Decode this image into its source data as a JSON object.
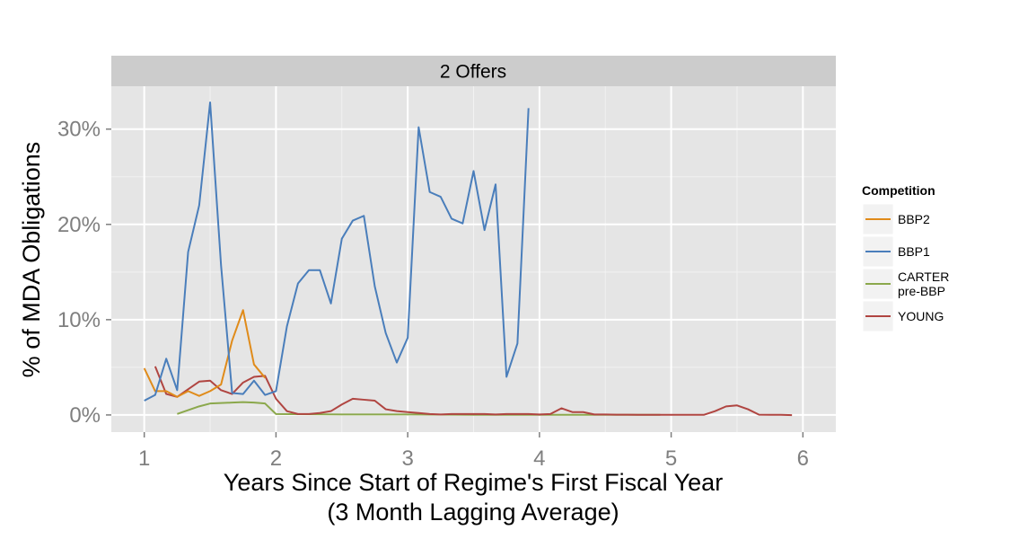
{
  "chart_data": {
    "type": "line",
    "facet_label": "2 Offers",
    "xlabel": "Years Since Start of Regime's First Fiscal Year",
    "xlabel_line2": "(3 Month Lagging Average)",
    "ylabel": "% of MDA Obligations",
    "xlim": [
      0.75,
      6.25
    ],
    "ylim": [
      -0.018,
      0.345
    ],
    "x_ticks": [
      1,
      2,
      3,
      4,
      5,
      6
    ],
    "x_tick_labels": [
      "1",
      "2",
      "3",
      "4",
      "5",
      "6"
    ],
    "y_ticks": [
      0,
      0.1,
      0.2,
      0.3
    ],
    "y_tick_labels": [
      "0%",
      "10%",
      "20%",
      "30%"
    ],
    "grid": true,
    "legend": {
      "title": "Competition",
      "position": "right",
      "entries": [
        "BBP2",
        "BBP1",
        "CARTER\npre-BBP",
        "YOUNG"
      ]
    },
    "series": [
      {
        "name": "BBP2",
        "color": "#e08b1a",
        "points": [
          [
            1.0,
            0.049
          ],
          [
            1.083,
            0.025
          ],
          [
            1.167,
            0.025
          ],
          [
            1.25,
            0.019
          ],
          [
            1.333,
            0.025
          ],
          [
            1.417,
            0.02
          ],
          [
            1.5,
            0.025
          ],
          [
            1.583,
            0.032
          ],
          [
            1.667,
            0.078
          ],
          [
            1.75,
            0.11
          ],
          [
            1.833,
            0.053
          ],
          [
            1.917,
            0.039
          ]
        ]
      },
      {
        "name": "BBP1",
        "color": "#4a7ebb",
        "points": [
          [
            1.0,
            0.015
          ],
          [
            1.083,
            0.021
          ],
          [
            1.167,
            0.059
          ],
          [
            1.25,
            0.026
          ],
          [
            1.333,
            0.171
          ],
          [
            1.417,
            0.22
          ],
          [
            1.5,
            0.328
          ],
          [
            1.583,
            0.157
          ],
          [
            1.667,
            0.023
          ],
          [
            1.75,
            0.022
          ],
          [
            1.833,
            0.036
          ],
          [
            1.917,
            0.021
          ],
          [
            2.0,
            0.025
          ],
          [
            2.083,
            0.093
          ],
          [
            2.167,
            0.138
          ],
          [
            2.25,
            0.152
          ],
          [
            2.333,
            0.152
          ],
          [
            2.417,
            0.117
          ],
          [
            2.5,
            0.185
          ],
          [
            2.583,
            0.204
          ],
          [
            2.667,
            0.209
          ],
          [
            2.75,
            0.135
          ],
          [
            2.833,
            0.086
          ],
          [
            2.917,
            0.055
          ],
          [
            3.0,
            0.081
          ],
          [
            3.083,
            0.302
          ],
          [
            3.167,
            0.234
          ],
          [
            3.25,
            0.229
          ],
          [
            3.333,
            0.206
          ],
          [
            3.417,
            0.201
          ],
          [
            3.5,
            0.256
          ],
          [
            3.583,
            0.194
          ],
          [
            3.667,
            0.242
          ],
          [
            3.75,
            0.04
          ],
          [
            3.833,
            0.075
          ],
          [
            3.917,
            0.322
          ]
        ]
      },
      {
        "name": "CARTER\npre-BBP",
        "color": "#8ba84c",
        "points": [
          [
            1.25,
            0.001
          ],
          [
            1.333,
            0.005
          ],
          [
            1.417,
            0.009
          ],
          [
            1.5,
            0.012
          ],
          [
            1.583,
            0.0125
          ],
          [
            1.667,
            0.013
          ],
          [
            1.75,
            0.0135
          ],
          [
            1.833,
            0.013
          ],
          [
            1.917,
            0.012
          ],
          [
            2.0,
            0.001
          ],
          [
            2.5,
            0.0005
          ],
          [
            3.0,
            0.0005
          ],
          [
            3.5,
            0.0002
          ],
          [
            4.0,
            0.0002
          ],
          [
            4.5,
            0.0001
          ],
          [
            4.917,
            0.0001
          ]
        ]
      },
      {
        "name": "YOUNG",
        "color": "#b04541",
        "points": [
          [
            1.083,
            0.051
          ],
          [
            1.167,
            0.022
          ],
          [
            1.25,
            0.019
          ],
          [
            1.333,
            0.027
          ],
          [
            1.417,
            0.035
          ],
          [
            1.5,
            0.036
          ],
          [
            1.583,
            0.026
          ],
          [
            1.667,
            0.022
          ],
          [
            1.75,
            0.034
          ],
          [
            1.833,
            0.04
          ],
          [
            1.917,
            0.041
          ],
          [
            2.0,
            0.017
          ],
          [
            2.083,
            0.004
          ],
          [
            2.167,
            0.001
          ],
          [
            2.25,
            0.001
          ],
          [
            2.333,
            0.002
          ],
          [
            2.417,
            0.004
          ],
          [
            2.5,
            0.011
          ],
          [
            2.583,
            0.017
          ],
          [
            2.667,
            0.016
          ],
          [
            2.75,
            0.015
          ],
          [
            2.833,
            0.006
          ],
          [
            2.917,
            0.004
          ],
          [
            3.0,
            0.003
          ],
          [
            3.083,
            0.002
          ],
          [
            3.167,
            0.001
          ],
          [
            3.25,
            0.0005
          ],
          [
            3.333,
            0.001
          ],
          [
            3.417,
            0.001
          ],
          [
            3.5,
            0.001
          ],
          [
            3.583,
            0.001
          ],
          [
            3.667,
            0.0005
          ],
          [
            3.75,
            0.001
          ],
          [
            3.833,
            0.001
          ],
          [
            3.917,
            0.001
          ],
          [
            4.0,
            0.0005
          ],
          [
            4.083,
            0.001
          ],
          [
            4.167,
            0.007
          ],
          [
            4.25,
            0.003
          ],
          [
            4.333,
            0.003
          ],
          [
            4.417,
            0.0005
          ],
          [
            4.5,
            0.0005
          ],
          [
            4.583,
            0.0003
          ],
          [
            4.667,
            0.0003
          ],
          [
            4.75,
            0.0002
          ],
          [
            4.833,
            0.0002
          ],
          [
            4.917,
            0.0002
          ],
          [
            5.0,
            0.0002
          ],
          [
            5.083,
            0.0002
          ],
          [
            5.167,
            0.0002
          ],
          [
            5.25,
            0.0002
          ],
          [
            5.333,
            0.004
          ],
          [
            5.417,
            0.009
          ],
          [
            5.5,
            0.01
          ],
          [
            5.583,
            0.006
          ],
          [
            5.667,
            0.0003
          ],
          [
            5.75,
            0.0002
          ],
          [
            5.833,
            0.0002
          ],
          [
            5.917,
            -0.0002
          ]
        ]
      }
    ]
  }
}
